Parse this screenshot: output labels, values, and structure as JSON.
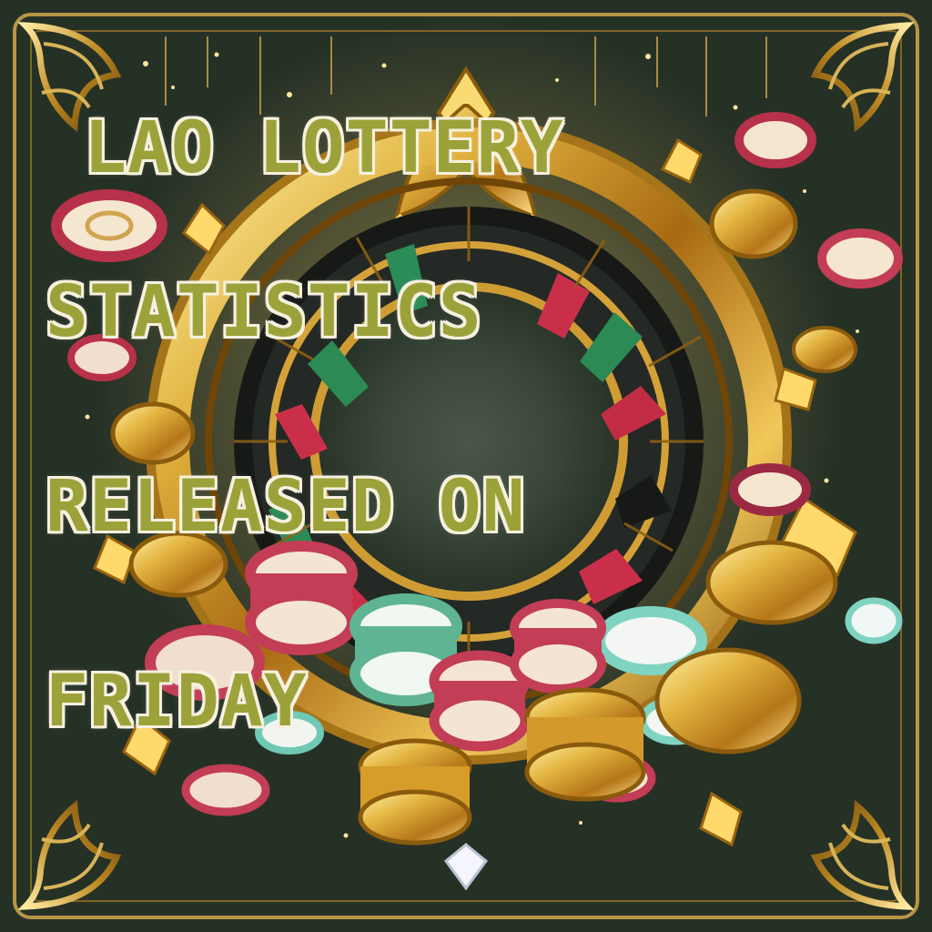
{
  "headline": {
    "line1": "LAO LOTTERY",
    "line2": "STATISTICS",
    "line3": "RELEASED ON",
    "line4": "FRIDAY"
  },
  "palette": {
    "text": "#9ca23a",
    "textOutline": "#f6f1df",
    "gold": "#d7a52a",
    "goldLight": "#ffe28a",
    "red": "#b8314a",
    "green": "#4b9f72",
    "teal": "#7fd3c1",
    "darkCenter": "#364236"
  }
}
